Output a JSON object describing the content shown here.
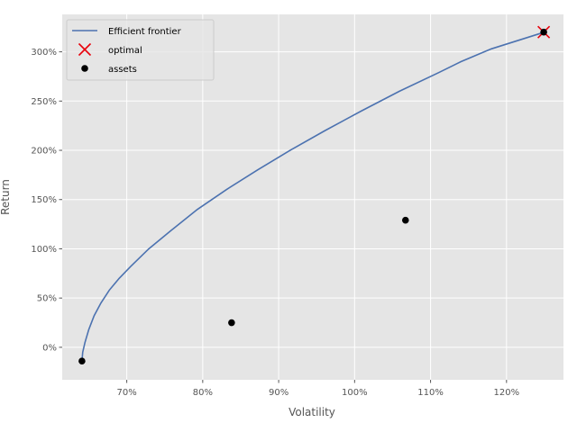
{
  "chart_data": {
    "type": "line",
    "xlabel": "Volatility",
    "ylabel": "Return",
    "xlim": [
      0.615,
      1.275
    ],
    "ylim": [
      -0.33,
      3.38
    ],
    "xticks": [
      0.7,
      0.8,
      0.9,
      1.0,
      1.1,
      1.2
    ],
    "xtick_labels": [
      "70%",
      "80%",
      "90%",
      "100%",
      "110%",
      "120%"
    ],
    "yticks": [
      0,
      0.5,
      1.0,
      1.5,
      2.0,
      2.5,
      3.0
    ],
    "ytick_labels": [
      "0%",
      "50%",
      "100%",
      "150%",
      "200%",
      "250%",
      "300%"
    ],
    "grid": true,
    "legend_position": "upper-left",
    "legend": [
      {
        "label": "Efficient frontier",
        "marker": "line",
        "color": "#4c72b0"
      },
      {
        "label": "optimal",
        "marker": "x",
        "color": "#e8000b"
      },
      {
        "label": "assets",
        "marker": "dot",
        "color": "#000000"
      }
    ],
    "series": [
      {
        "name": "Efficient frontier",
        "kind": "line",
        "color": "#4c72b0",
        "x": [
          0.641,
          0.642,
          0.645,
          0.65,
          0.657,
          0.666,
          0.677,
          0.69,
          0.705,
          0.729,
          0.759,
          0.793,
          0.831,
          0.872,
          0.915,
          0.961,
          1.009,
          1.059,
          1.111,
          1.14,
          1.18,
          1.25
        ],
        "y": [
          -0.14,
          -0.05,
          0.05,
          0.18,
          0.32,
          0.45,
          0.58,
          0.7,
          0.82,
          1.0,
          1.19,
          1.4,
          1.6,
          1.8,
          2.0,
          2.2,
          2.4,
          2.6,
          2.79,
          2.9,
          3.03,
          3.2
        ]
      },
      {
        "name": "optimal",
        "kind": "scatter-x",
        "color": "#e8000b",
        "x": [
          1.249
        ],
        "y": [
          3.2
        ]
      },
      {
        "name": "assets",
        "kind": "scatter",
        "color": "#000000",
        "x": [
          0.641,
          0.838,
          1.067,
          1.249
        ],
        "y": [
          -0.14,
          0.25,
          1.29,
          3.2
        ]
      }
    ]
  }
}
